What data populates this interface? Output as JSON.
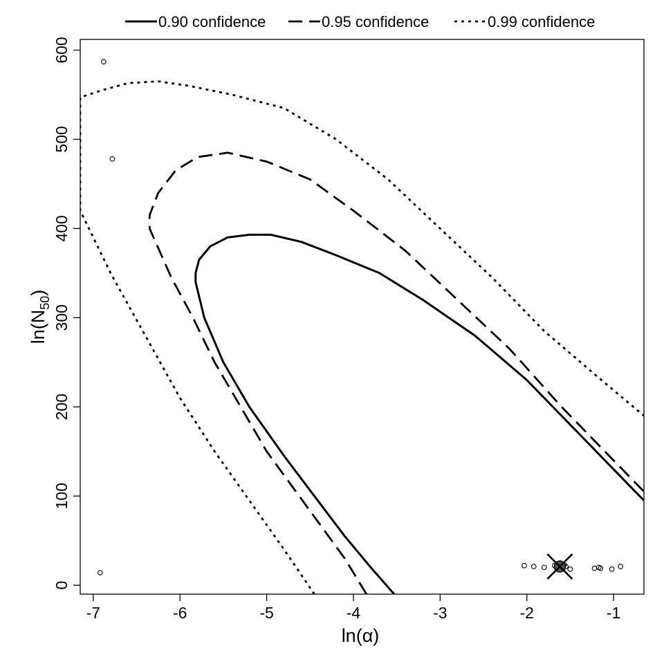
{
  "chart_data": {
    "type": "line",
    "title": "",
    "xlabel": "ln(α)",
    "ylabel_main": "ln(N",
    "ylabel_sub": "50",
    "ylabel_close": ")",
    "xlim": [
      -7.15,
      -0.65
    ],
    "ylim": [
      -10,
      612
    ],
    "x_ticks": [
      -7,
      -6,
      -5,
      -4,
      -3,
      -2,
      -1
    ],
    "y_ticks": [
      0,
      100,
      200,
      300,
      400,
      500,
      600
    ],
    "legend_position": "top",
    "grid": false,
    "series": [
      {
        "name": "0.90 confidence",
        "style": "solid",
        "x": [
          -3.53,
          -3.8,
          -4.1,
          -4.45,
          -4.8,
          -5.2,
          -5.5,
          -5.72,
          -5.82,
          -5.82,
          -5.78,
          -5.65,
          -5.45,
          -5.2,
          -4.95,
          -4.6,
          -4.2,
          -3.7,
          -3.2,
          -2.6,
          -2.0,
          -1.5,
          -1.0,
          -0.65
        ],
        "y": [
          -10,
          20,
          55,
          100,
          145,
          200,
          250,
          300,
          340,
          350,
          365,
          380,
          390,
          393,
          393,
          385,
          370,
          350,
          320,
          280,
          230,
          180,
          130,
          95
        ]
      },
      {
        "name": "0.95 confidence",
        "style": "dashed",
        "x": [
          -3.85,
          -4.1,
          -4.4,
          -4.7,
          -5.0,
          -5.3,
          -5.6,
          -5.85,
          -6.1,
          -6.35,
          -6.35,
          -6.25,
          -6.05,
          -5.8,
          -5.45,
          -5.0,
          -4.5,
          -4.0,
          -3.4,
          -2.8,
          -2.2,
          -1.6,
          -1.0,
          -0.65
        ],
        "y": [
          -10,
          30,
          70,
          110,
          150,
          200,
          250,
          300,
          345,
          400,
          415,
          440,
          465,
          480,
          485,
          475,
          455,
          420,
          375,
          320,
          265,
          200,
          140,
          105
        ]
      },
      {
        "name": "0.99 confidence",
        "style": "dotted",
        "x": [
          -4.45,
          -4.8,
          -5.2,
          -5.6,
          -6.0,
          -6.4,
          -6.8,
          -7.15,
          -7.15,
          -6.9,
          -6.6,
          -6.25,
          -5.9,
          -5.4,
          -4.8,
          -4.2,
          -3.6,
          -3.0,
          -2.4,
          -1.8,
          -1.2,
          -0.65
        ],
        "y": [
          -10,
          40,
          95,
          150,
          210,
          280,
          350,
          420,
          547,
          555,
          563,
          565,
          560,
          550,
          535,
          500,
          455,
          400,
          345,
          285,
          235,
          190
        ]
      }
    ],
    "scatter_points": [
      {
        "x": -6.88,
        "y": 587
      },
      {
        "x": -6.78,
        "y": 478
      },
      {
        "x": -6.92,
        "y": 14
      },
      {
        "x": -2.03,
        "y": 22
      },
      {
        "x": -1.92,
        "y": 21
      },
      {
        "x": -1.8,
        "y": 20
      },
      {
        "x": -1.68,
        "y": 22
      },
      {
        "x": -1.62,
        "y": 21
      },
      {
        "x": -1.57,
        "y": 23
      },
      {
        "x": -1.55,
        "y": 21
      },
      {
        "x": -1.5,
        "y": 18
      },
      {
        "x": -1.22,
        "y": 19
      },
      {
        "x": -1.17,
        "y": 20
      },
      {
        "x": -1.15,
        "y": 19
      },
      {
        "x": -1.02,
        "y": 18
      },
      {
        "x": -0.92,
        "y": 21
      }
    ],
    "best_estimate": {
      "x": -1.62,
      "y": 21
    }
  }
}
